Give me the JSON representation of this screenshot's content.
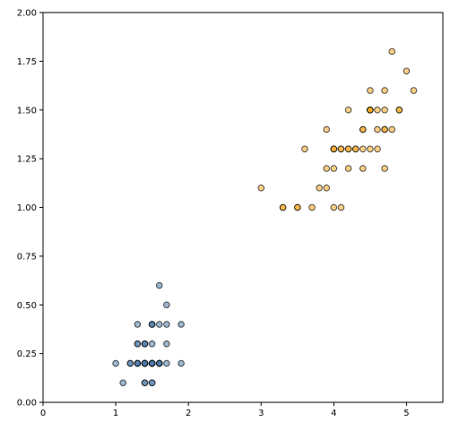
{
  "chart_data": {
    "type": "scatter",
    "title": "",
    "xlabel": "",
    "ylabel": "",
    "xlim": [
      0,
      5.5
    ],
    "ylim": [
      0,
      2.0
    ],
    "x_ticks": [
      0,
      1,
      2,
      3,
      4,
      5
    ],
    "x_tick_labels": [
      "0",
      "1",
      "2",
      "3",
      "4",
      "5"
    ],
    "y_ticks": [
      0,
      0.25,
      0.5,
      0.75,
      1.0,
      1.25,
      1.5,
      1.75,
      2.0
    ],
    "y_tick_labels": [
      "0.00",
      "0.25",
      "0.50",
      "0.75",
      "1.00",
      "1.25",
      "1.50",
      "1.75",
      "2.00"
    ],
    "grid": false,
    "legend": "none",
    "series": [
      {
        "color": "#4a7aa8",
        "points": [
          [
            1.4,
            0.2
          ],
          [
            1.4,
            0.2
          ],
          [
            1.3,
            0.2
          ],
          [
            1.5,
            0.2
          ],
          [
            1.4,
            0.2
          ],
          [
            1.7,
            0.4
          ],
          [
            1.4,
            0.3
          ],
          [
            1.5,
            0.2
          ],
          [
            1.4,
            0.2
          ],
          [
            1.5,
            0.1
          ],
          [
            1.5,
            0.2
          ],
          [
            1.6,
            0.2
          ],
          [
            1.4,
            0.1
          ],
          [
            1.1,
            0.1
          ],
          [
            1.2,
            0.2
          ],
          [
            1.5,
            0.4
          ],
          [
            1.3,
            0.4
          ],
          [
            1.4,
            0.3
          ],
          [
            1.7,
            0.3
          ],
          [
            1.5,
            0.3
          ],
          [
            1.7,
            0.2
          ],
          [
            1.5,
            0.4
          ],
          [
            1.0,
            0.2
          ],
          [
            1.7,
            0.5
          ],
          [
            1.9,
            0.2
          ],
          [
            1.6,
            0.2
          ],
          [
            1.6,
            0.4
          ],
          [
            1.5,
            0.2
          ],
          [
            1.4,
            0.2
          ],
          [
            1.6,
            0.2
          ],
          [
            1.6,
            0.2
          ],
          [
            1.5,
            0.4
          ],
          [
            1.5,
            0.1
          ],
          [
            1.4,
            0.2
          ],
          [
            1.5,
            0.2
          ],
          [
            1.2,
            0.2
          ],
          [
            1.3,
            0.2
          ],
          [
            1.4,
            0.1
          ],
          [
            1.3,
            0.2
          ],
          [
            1.5,
            0.2
          ],
          [
            1.3,
            0.3
          ],
          [
            1.3,
            0.3
          ],
          [
            1.3,
            0.2
          ],
          [
            1.6,
            0.6
          ],
          [
            1.9,
            0.4
          ],
          [
            1.4,
            0.3
          ],
          [
            1.6,
            0.2
          ],
          [
            1.4,
            0.2
          ],
          [
            1.5,
            0.2
          ],
          [
            1.4,
            0.2
          ]
        ]
      },
      {
        "color": "#f5a623",
        "points": [
          [
            4.7,
            1.4
          ],
          [
            4.5,
            1.5
          ],
          [
            4.9,
            1.5
          ],
          [
            4.0,
            1.3
          ],
          [
            4.6,
            1.5
          ],
          [
            4.5,
            1.3
          ],
          [
            4.7,
            1.6
          ],
          [
            3.3,
            1.0
          ],
          [
            4.6,
            1.3
          ],
          [
            3.9,
            1.4
          ],
          [
            3.5,
            1.0
          ],
          [
            4.2,
            1.5
          ],
          [
            4.0,
            1.0
          ],
          [
            4.7,
            1.4
          ],
          [
            3.6,
            1.3
          ],
          [
            4.4,
            1.4
          ],
          [
            4.5,
            1.5
          ],
          [
            4.1,
            1.0
          ],
          [
            4.5,
            1.5
          ],
          [
            3.9,
            1.1
          ],
          [
            4.8,
            1.8
          ],
          [
            4.0,
            1.3
          ],
          [
            4.9,
            1.5
          ],
          [
            4.7,
            1.2
          ],
          [
            4.3,
            1.3
          ],
          [
            4.4,
            1.4
          ],
          [
            4.8,
            1.4
          ],
          [
            5.0,
            1.7
          ],
          [
            4.5,
            1.5
          ],
          [
            3.5,
            1.0
          ],
          [
            3.8,
            1.1
          ],
          [
            3.7,
            1.0
          ],
          [
            3.9,
            1.2
          ],
          [
            5.1,
            1.6
          ],
          [
            4.5,
            1.5
          ],
          [
            4.5,
            1.6
          ],
          [
            4.7,
            1.5
          ],
          [
            4.4,
            1.3
          ],
          [
            4.1,
            1.3
          ],
          [
            4.0,
            1.3
          ],
          [
            4.4,
            1.2
          ],
          [
            4.6,
            1.4
          ],
          [
            4.0,
            1.2
          ],
          [
            3.3,
            1.0
          ],
          [
            4.2,
            1.3
          ],
          [
            4.2,
            1.2
          ],
          [
            4.2,
            1.3
          ],
          [
            4.3,
            1.3
          ],
          [
            3.0,
            1.1
          ],
          [
            4.1,
            1.3
          ]
        ]
      }
    ]
  }
}
